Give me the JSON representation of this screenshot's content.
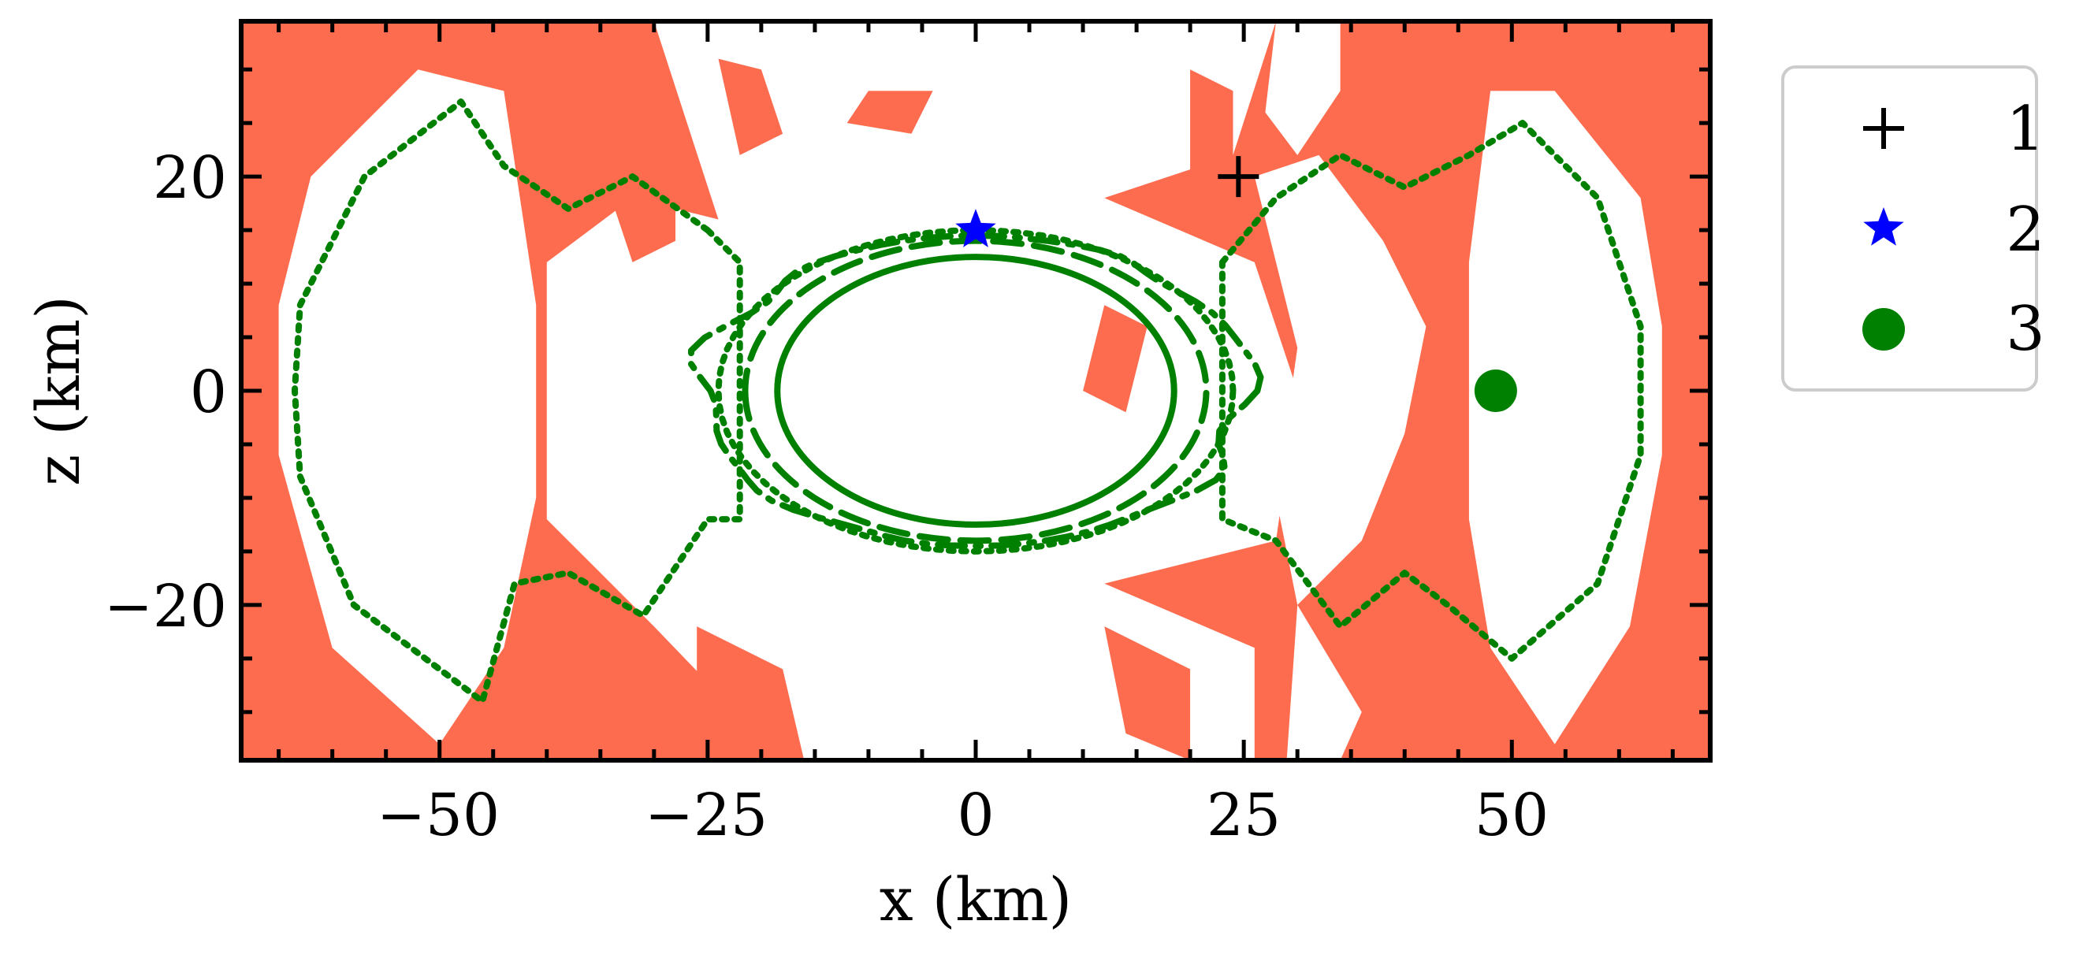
{
  "chart_data": {
    "type": "scatter",
    "title": "",
    "xlabel": "x (km)",
    "ylabel": "z (km)",
    "xlim": [
      -68.5,
      68.5
    ],
    "ylim": [
      -34.5,
      34.5
    ],
    "xticks": [
      -50,
      -25,
      0,
      25,
      50
    ],
    "yticks": [
      -20,
      0,
      20
    ],
    "xtick_labels": [
      "−50",
      "−25",
      "0",
      "25",
      "50"
    ],
    "ytick_labels": [
      "−20",
      "0",
      "20"
    ],
    "grid": false,
    "legend": {
      "location": "outside-right-top",
      "entries": [
        {
          "label": "1",
          "marker": "plus",
          "color": "#000000"
        },
        {
          "label": "2",
          "marker": "star",
          "color": "#0000ff"
        },
        {
          "label": "3",
          "marker": "circle",
          "color": "#008000"
        }
      ]
    },
    "points": [
      {
        "label": "1",
        "x": 24.5,
        "y": 20,
        "marker": "plus",
        "color": "#000000"
      },
      {
        "label": "2",
        "x": 0,
        "y": 15,
        "marker": "star",
        "color": "#0000ff"
      },
      {
        "label": "3",
        "x": 48.5,
        "y": 0,
        "marker": "circle",
        "color": "#008000"
      }
    ],
    "background_fill_color": "#fd6c4e",
    "contours": [
      {
        "style": "solid",
        "color": "#008000",
        "shape": "ellipse",
        "rx": 18.5,
        "rz": 12.5
      },
      {
        "style": "dashed",
        "color": "#008000",
        "shape": "ellipse",
        "rx": 21.5,
        "rz": 14
      },
      {
        "style": "dashdot",
        "color": "#008000",
        "shape": "ragged-ellipse",
        "rx": 25.5,
        "rz": 14.5
      },
      {
        "style": "dotted",
        "color": "#008000",
        "shape": "outer-shell",
        "rx": 63.5,
        "rz": 28
      }
    ]
  }
}
